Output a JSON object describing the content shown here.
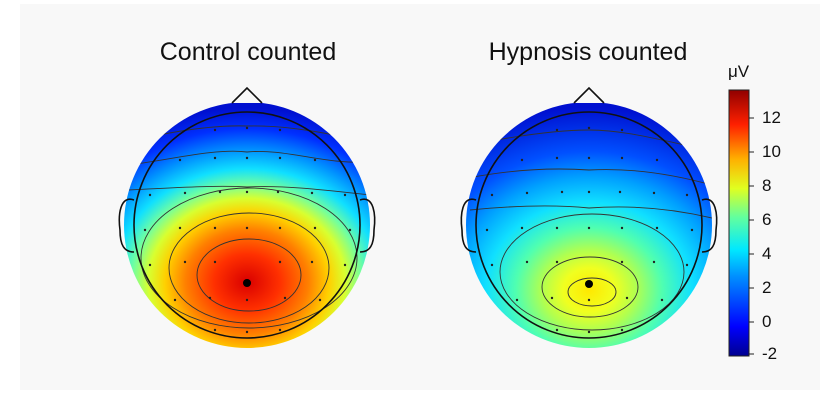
{
  "maps": [
    {
      "title": "Control counted",
      "peak_uV": 13
    },
    {
      "title": "Hypnosis counted",
      "peak_uV": 8
    }
  ],
  "colorbar": {
    "unit": "μV",
    "ticks": [
      "12",
      "10",
      "8",
      "6",
      "4",
      "2",
      "0",
      "-2"
    ],
    "colors": [
      "#0000a0",
      "#0000ff",
      "#0090ff",
      "#00e0ff",
      "#40ffc0",
      "#c0ff40",
      "#ffe000",
      "#ff8000",
      "#ff0000",
      "#a00000"
    ]
  }
}
